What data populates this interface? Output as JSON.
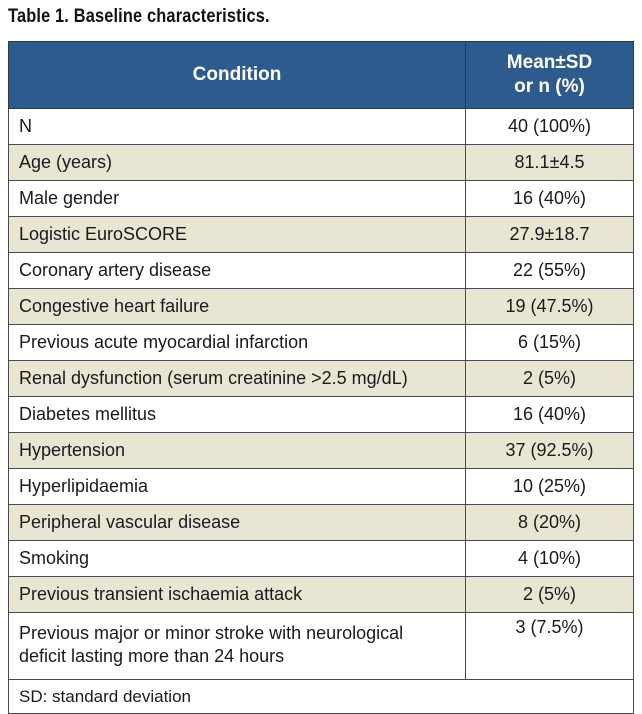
{
  "caption": "Table 1. Baseline characteristics.",
  "header": {
    "condition": "Condition",
    "stat_line1": "Mean±SD",
    "stat_line2": "or n (%)"
  },
  "rows": [
    {
      "condition": "N",
      "value": "40 (100%)"
    },
    {
      "condition": "Age (years)",
      "value": "81.1±4.5"
    },
    {
      "condition": "Male gender",
      "value": "16 (40%)"
    },
    {
      "condition": "Logistic EuroSCORE",
      "value": "27.9±18.7"
    },
    {
      "condition": "Coronary artery disease",
      "value": "22 (55%)"
    },
    {
      "condition": "Congestive heart failure",
      "value": "19 (47.5%)"
    },
    {
      "condition": "Previous acute myocardial infarction",
      "value": "6 (15%)"
    },
    {
      "condition": "Renal dysfunction (serum creatinine >2.5 mg/dL)",
      "value": "2 (5%)"
    },
    {
      "condition": "Diabetes mellitus",
      "value": "16 (40%)"
    },
    {
      "condition": "Hypertension",
      "value": "37 (92.5%)"
    },
    {
      "condition": "Hyperlipidaemia",
      "value": "10 (25%)"
    },
    {
      "condition": "Peripheral vascular disease",
      "value": "8 (20%)"
    },
    {
      "condition": "Smoking",
      "value": "4 (10%)"
    },
    {
      "condition": "Previous transient ischaemia attack",
      "value": "2 (5%)"
    },
    {
      "condition_line1": "Previous major or minor stroke with neurological",
      "condition_line2": "deficit lasting more than 24 hours",
      "value": "3 (7.5%)"
    }
  ],
  "footnote": "SD: standard deviation",
  "colors": {
    "header_bg": "#2d5b8d",
    "shaded_row_bg": "#e9e5d3"
  }
}
